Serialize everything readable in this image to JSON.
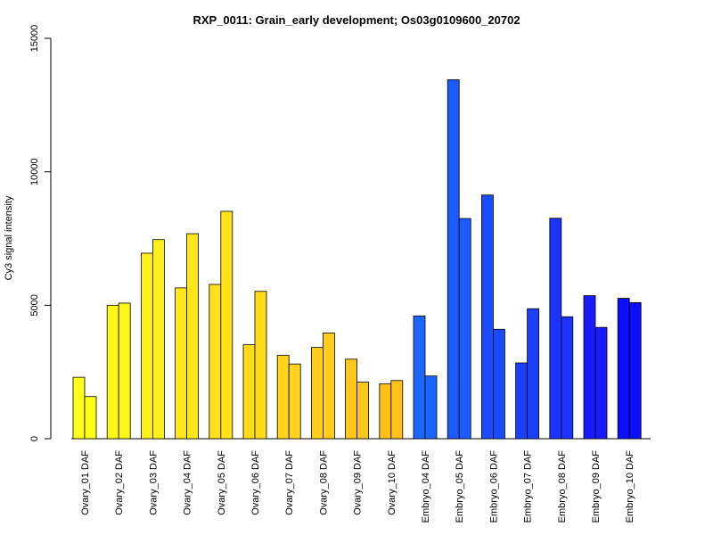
{
  "chart_data": {
    "type": "bar",
    "title": "RXP_0011: Grain_early development; Os03g0109600_20702",
    "xlabel": "",
    "ylabel": "Cy3 signal intensity",
    "ylim": [
      0,
      15000
    ],
    "yticks": [
      0,
      5000,
      10000,
      15000
    ],
    "grid": false,
    "categories": [
      "Ovary_01 DAF",
      "Ovary_02 DAF",
      "Ovary_03 DAF",
      "Ovary_04 DAF",
      "Ovary_05 DAF",
      "Ovary_06 DAF",
      "Ovary_07 DAF",
      "Ovary_08 DAF",
      "Ovary_09 DAF",
      "Ovary_10 DAF",
      "Embryo_04 DAF",
      "Embryo_05 DAF",
      "Embryo_06 DAF",
      "Embryo_07 DAF",
      "Embryo_08 DAF",
      "Embryo_09 DAF",
      "Embryo_10 DAF"
    ],
    "series": [
      {
        "values": [
          2300,
          5000,
          6950,
          5650,
          5780,
          3520,
          3120,
          3420,
          2980,
          2060,
          4600,
          13450,
          9130,
          2840,
          8260,
          5360,
          5260
        ]
      },
      {
        "values": [
          1580,
          5080,
          7460,
          7680,
          8520,
          5520,
          2800,
          3960,
          2120,
          2180,
          2350,
          8250,
          4100,
          4870,
          4570,
          4170,
          5100
        ]
      }
    ],
    "colors": [
      "#ffff1a",
      "#fff61a",
      "#ffef1a",
      "#ffe81a",
      "#ffe21a",
      "#ffdb1a",
      "#ffd41a",
      "#ffcd1a",
      "#ffc71a",
      "#ffc01a",
      "#1a66ff",
      "#1a5aff",
      "#1a4cff",
      "#1a3fff",
      "#1a33ff",
      "#1a1aff",
      "#0d0dff"
    ]
  }
}
